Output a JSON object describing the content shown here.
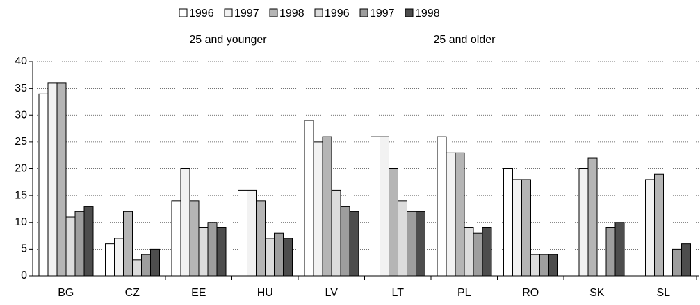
{
  "chart_data": {
    "type": "bar",
    "categories": [
      "BG",
      "CZ",
      "EE",
      "HU",
      "LV",
      "LT",
      "PL",
      "RO",
      "SK",
      "SL"
    ],
    "legend_groups": [
      "25 and younger",
      "25 and older"
    ],
    "series": [
      {
        "name": "1996",
        "color": "#ffffff",
        "values": [
          34,
          6,
          14,
          16,
          29,
          26,
          26,
          20,
          null,
          null
        ]
      },
      {
        "name": "1997",
        "color": "#f2f2f2",
        "values": [
          36,
          7,
          20,
          16,
          25,
          26,
          23,
          18,
          20,
          18
        ]
      },
      {
        "name": "1998",
        "color": "#b5b5b5",
        "values": [
          36,
          12,
          14,
          14,
          26,
          20,
          23,
          18,
          22,
          19
        ]
      },
      {
        "name": "1996",
        "color": "#dcdcdc",
        "values": [
          11,
          3,
          9,
          7,
          16,
          14,
          9,
          4,
          null,
          null
        ]
      },
      {
        "name": "1997",
        "color": "#9e9e9e",
        "values": [
          12,
          4,
          10,
          8,
          13,
          12,
          8,
          4,
          9,
          5
        ]
      },
      {
        "name": "1998",
        "color": "#4d4d4d",
        "values": [
          13,
          5,
          9,
          7,
          12,
          12,
          9,
          4,
          10,
          6
        ]
      }
    ],
    "ylim": [
      0,
      40
    ],
    "yticks": [
      0,
      5,
      10,
      15,
      20,
      25,
      30,
      35,
      40
    ],
    "grid": true
  }
}
